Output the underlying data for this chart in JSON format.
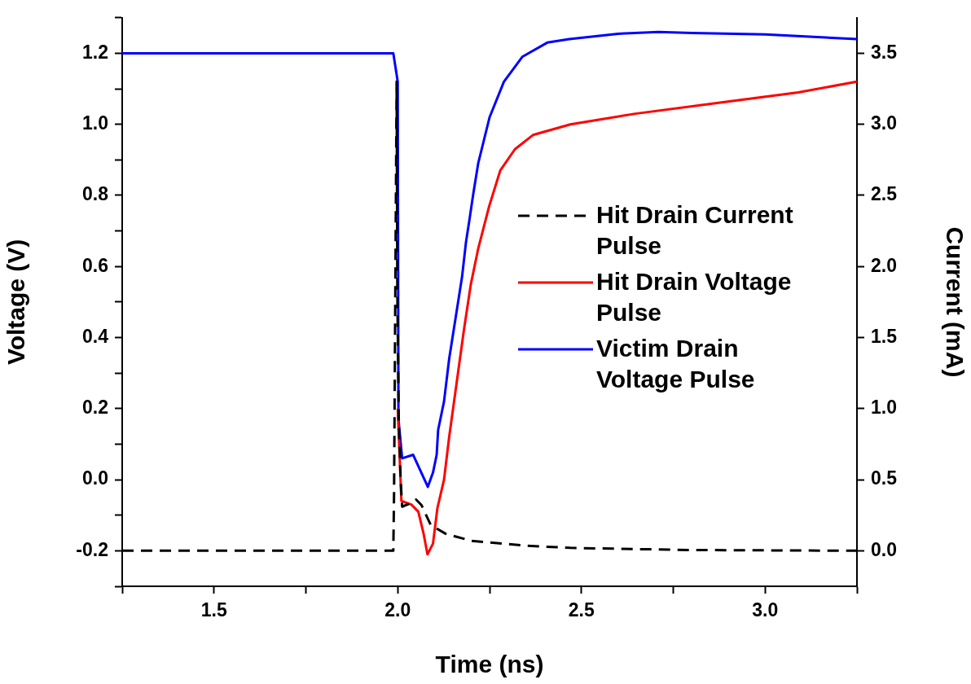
{
  "chart_data": {
    "type": "line",
    "xlabel": "Time (ns)",
    "ylabel": "Voltage (V)",
    "y2label": "Current (mA)",
    "xlim": [
      1.25,
      3.25
    ],
    "xticks": [
      {
        "value": 1.25,
        "label": null
      },
      1.5,
      {
        "value": 1.75,
        "label": null
      },
      {
        "value": 2,
        "label": "2.0"
      },
      {
        "value": 2.25,
        "label": null
      },
      2.5,
      {
        "value": 2.75,
        "label": null
      },
      {
        "value": 3,
        "label": "3.0"
      },
      {
        "value": 3.25,
        "label": null
      }
    ],
    "ylim": [
      -0.3,
      1.3
    ],
    "yticks": [
      {
        "value": -0.3,
        "label": null
      },
      -0.2,
      {
        "value": -0.1,
        "label": null
      },
      {
        "value": 0,
        "label": "0.0"
      },
      {
        "value": 0.1,
        "label": null
      },
      0.2,
      {
        "value": 0.3,
        "label": null
      },
      0.4,
      {
        "value": 0.5,
        "label": null
      },
      0.6,
      {
        "value": 0.7,
        "label": null
      },
      0.8,
      {
        "value": 0.9,
        "label": null
      },
      {
        "value": 1,
        "label": "1.0"
      },
      {
        "value": 1.1,
        "label": null
      },
      1.2,
      {
        "value": 1.3,
        "label": null
      }
    ],
    "y2lim": [
      -0.25,
      3.75
    ],
    "y2ticks": [
      {
        "value": 0,
        "label": "0.0"
      },
      0.5,
      {
        "value": 1,
        "label": "1.0"
      },
      1.5,
      {
        "value": 2,
        "label": "2.0"
      },
      2.5,
      {
        "value": 3,
        "label": "3.0"
      },
      3.5
    ],
    "grid": false,
    "legend": "right",
    "marker": "none",
    "series": [
      {
        "name": "Hit Drain Current Pulse",
        "color": "#000000",
        "axis": "y2",
        "line_style": "dashed",
        "x": [
          1.25,
          1.988,
          1.99,
          1.997,
          1.999,
          2.003,
          2.008,
          2.012,
          2.03,
          2.05,
          2.065,
          2.09,
          2.13,
          2.2,
          2.35,
          2.47,
          2.8,
          3.25
        ],
        "values": [
          0,
          0,
          0.4,
          3.3,
          1.8,
          0.9,
          0.5,
          0.31,
          0.33,
          0.36,
          0.32,
          0.18,
          0.12,
          0.07,
          0.035,
          0.02,
          0.005,
          0
        ]
      },
      {
        "name": "Hit Drain Voltage Pulse",
        "color": "#ff0000",
        "axis": "y",
        "line_style": "solid",
        "x": [
          2.0,
          2.01,
          2.037,
          2.056,
          2.07,
          2.081,
          2.096,
          2.108,
          2.126,
          2.14,
          2.18,
          2.199,
          2.219,
          2.249,
          2.279,
          2.319,
          2.368,
          2.47,
          2.647,
          2.869,
          3.09,
          3.25
        ],
        "values": [
          0.2,
          -0.06,
          -0.07,
          -0.09,
          -0.15,
          -0.21,
          -0.18,
          -0.08,
          0.0,
          0.12,
          0.42,
          0.55,
          0.65,
          0.77,
          0.87,
          0.93,
          0.97,
          1.0,
          1.03,
          1.06,
          1.09,
          1.12
        ]
      },
      {
        "name": "Victim Drain Voltage Pulse",
        "color": "#0000ff",
        "axis": "y",
        "line_style": "solid",
        "x": [
          1.25,
          1.988,
          2.0,
          2.002,
          2.012,
          2.042,
          2.082,
          2.096,
          2.106,
          2.11,
          2.126,
          2.14,
          2.175,
          2.186,
          2.195,
          2.205,
          2.219,
          2.25,
          2.289,
          2.339,
          2.407,
          2.467,
          2.6,
          2.71,
          2.8,
          3.0,
          3.25
        ],
        "values": [
          1.2,
          1.2,
          1.12,
          0.17,
          0.06,
          0.07,
          -0.02,
          0.02,
          0.07,
          0.14,
          0.22,
          0.34,
          0.57,
          0.67,
          0.73,
          0.8,
          0.89,
          1.02,
          1.12,
          1.19,
          1.23,
          1.24,
          1.255,
          1.26,
          1.257,
          1.253,
          1.24
        ]
      }
    ]
  }
}
